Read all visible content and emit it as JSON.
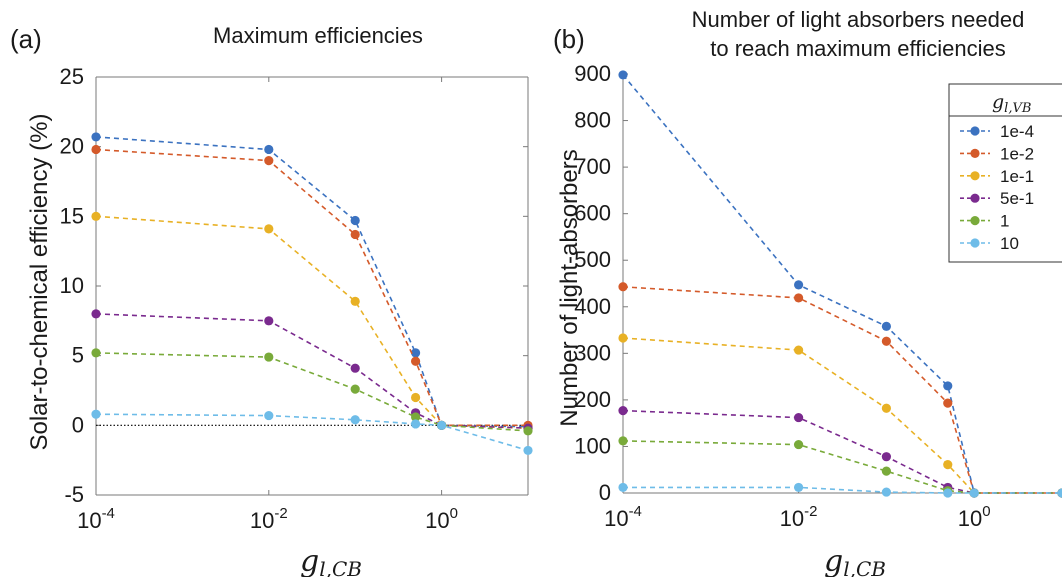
{
  "panels": [
    {
      "panel_label": "(a)",
      "title": "Maximum efficiencies",
      "ylabel": "Solar-to-chemical efficiency (%)",
      "xlabel_base": "g",
      "xlabel_sub": "l,CB"
    },
    {
      "panel_label": "(b)",
      "title_lines": [
        "Number of light absorbers needed",
        "to reach maximum efficiencies"
      ],
      "ylabel": "Number of light-absorbers",
      "xlabel_base": "g",
      "xlabel_sub": "l,CB",
      "legend_title_base": "g",
      "legend_title_sub": "l,VB"
    }
  ],
  "chart_data": [
    {
      "type": "line",
      "title": "Maximum efficiencies",
      "xlabel": "g_l,CB",
      "ylabel": "Solar-to-chemical efficiency (%)",
      "xscale": "log",
      "xlim": [
        0.0001,
        10
      ],
      "ylim": [
        -5,
        25
      ],
      "xticks": [
        0.0001,
        0.01,
        1
      ],
      "xtick_labels": [
        {
          "base": "10",
          "exp": "-4"
        },
        {
          "base": "10",
          "exp": "-2"
        },
        {
          "base": "10",
          "exp": "0"
        }
      ],
      "yticks": [
        -5,
        0,
        5,
        10,
        15,
        20,
        25
      ],
      "ytick_labels": [
        "-5",
        "0",
        "5",
        "10",
        "15",
        "20",
        "25"
      ],
      "x": [
        0.0001,
        0.01,
        0.1,
        0.5,
        1,
        10
      ],
      "reference_line": {
        "y": 0,
        "style": "dotted",
        "color": "#000000"
      },
      "grid": false,
      "series": [
        {
          "name": "1e-4",
          "color": "#3b72c0",
          "values": [
            20.7,
            19.8,
            14.7,
            5.2,
            0.0,
            -0.1
          ]
        },
        {
          "name": "1e-2",
          "color": "#d45a2a",
          "values": [
            19.8,
            19.0,
            13.7,
            4.6,
            0.0,
            0.0
          ]
        },
        {
          "name": "1e-1",
          "color": "#e8b125",
          "values": [
            15.0,
            14.1,
            8.9,
            2.0,
            0.0,
            -0.2
          ]
        },
        {
          "name": "5e-1",
          "color": "#7a2a8e",
          "values": [
            8.0,
            7.5,
            4.1,
            0.9,
            0.0,
            -0.2
          ]
        },
        {
          "name": "1",
          "color": "#79aa3a",
          "values": [
            5.2,
            4.9,
            2.6,
            0.6,
            0.0,
            -0.4
          ]
        },
        {
          "name": "10",
          "color": "#6ebce8",
          "values": [
            0.8,
            0.7,
            0.4,
            0.1,
            0.0,
            -1.8
          ]
        }
      ]
    },
    {
      "type": "line",
      "title": "Number of light absorbers needed to reach maximum efficiencies",
      "xlabel": "g_l,CB",
      "ylabel": "Number of light-absorbers",
      "xscale": "log",
      "xlim": [
        0.0001,
        10
      ],
      "ylim": [
        0,
        900
      ],
      "xticks": [
        0.0001,
        0.01,
        1
      ],
      "xtick_labels": [
        {
          "base": "10",
          "exp": "-4"
        },
        {
          "base": "10",
          "exp": "-2"
        },
        {
          "base": "10",
          "exp": "0"
        }
      ],
      "yticks": [
        0,
        100,
        200,
        300,
        400,
        500,
        600,
        700,
        800,
        900
      ],
      "ytick_labels": [
        "0",
        "100",
        "200",
        "300",
        "400",
        "500",
        "600",
        "700",
        "800",
        "900"
      ],
      "x": [
        0.0001,
        0.01,
        0.1,
        0.5,
        1,
        10
      ],
      "grid": false,
      "legend": {
        "title": "g_l,VB",
        "position": "top-right"
      },
      "series": [
        {
          "name": "1e-4",
          "color": "#3b72c0",
          "values": [
            898,
            447,
            358,
            230,
            0,
            0
          ]
        },
        {
          "name": "1e-2",
          "color": "#d45a2a",
          "values": [
            443,
            419,
            326,
            193,
            0,
            0
          ]
        },
        {
          "name": "1e-1",
          "color": "#e8b125",
          "values": [
            333,
            307,
            182,
            61,
            0,
            0
          ]
        },
        {
          "name": "5e-1",
          "color": "#7a2a8e",
          "values": [
            177,
            162,
            78,
            12,
            0,
            0
          ]
        },
        {
          "name": "1",
          "color": "#79aa3a",
          "values": [
            112,
            104,
            47,
            5,
            0,
            0
          ]
        },
        {
          "name": "10",
          "color": "#6ebce8",
          "values": [
            12,
            12,
            2,
            0,
            0,
            0
          ]
        }
      ]
    }
  ]
}
